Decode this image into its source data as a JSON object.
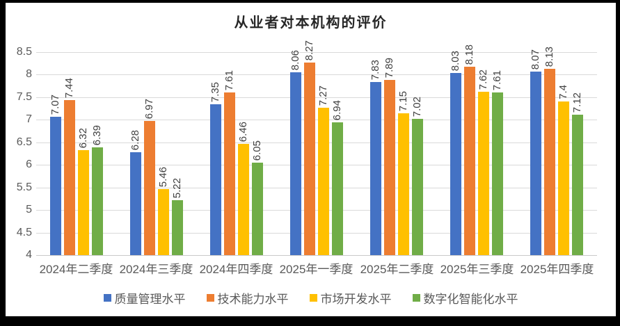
{
  "page": {
    "frame_color": "#000000",
    "card_color": "#ffffff"
  },
  "chart_data": {
    "type": "bar",
    "title": "从业者对本机构的评价",
    "categories": [
      "2024年二季度",
      "2024年三季度",
      "2024年四季度",
      "2025年一季度",
      "2025年二季度",
      "2025年三季度",
      "2025年四季度"
    ],
    "series": [
      {
        "name": "质量管理水平",
        "color": "#4472C4",
        "values": [
          7.07,
          6.28,
          7.35,
          8.06,
          7.83,
          8.03,
          8.07
        ]
      },
      {
        "name": "技术能力水平",
        "color": "#ED7D31",
        "values": [
          7.44,
          6.97,
          7.61,
          8.27,
          7.89,
          8.18,
          8.13
        ]
      },
      {
        "name": "市场开发水平",
        "color": "#FFC000",
        "values": [
          6.32,
          5.46,
          6.46,
          7.27,
          7.15,
          7.62,
          7.4
        ]
      },
      {
        "name": "数字化智能化水平",
        "color": "#70AD47",
        "values": [
          6.39,
          5.22,
          6.05,
          6.94,
          7.02,
          7.61,
          7.12
        ]
      }
    ],
    "xlabel": "",
    "ylabel": "",
    "y_axis": {
      "min": 4,
      "max": 8.5,
      "step": 0.5,
      "ticks": [
        "8.5",
        "8",
        "7.5",
        "7",
        "6.5",
        "6",
        "5.5",
        "5",
        "4.5",
        "4"
      ]
    },
    "grid": true,
    "legend_position": "bottom",
    "data_labels_rotated": true,
    "text_color": "#595959",
    "label_color": "#404040",
    "gridline_color": "#d9d9d9"
  }
}
